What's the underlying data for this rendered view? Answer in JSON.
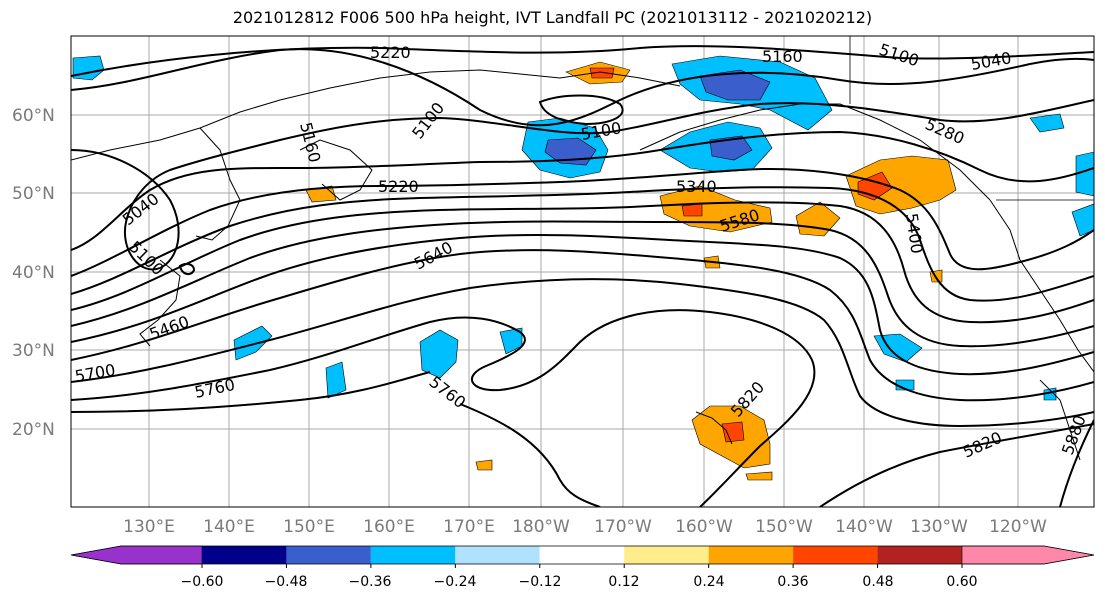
{
  "title": "2021012812 F006 500 hPa height, IVT Landfall PC (2021013112 - 2021020212)",
  "lat_labels": [
    "60°N",
    "50°N",
    "40°N",
    "30°N",
    "20°N"
  ],
  "lon_labels": [
    "130°E",
    "140°E",
    "150°E",
    "160°E",
    "170°E",
    "180°W",
    "170°W",
    "160°W",
    "150°W",
    "140°W",
    "130°W",
    "120°W"
  ],
  "contour_labels": [
    "5220",
    "5160",
    "5100",
    "5040",
    "5100",
    "5160",
    "5100",
    "5220",
    "5340",
    "5280",
    "5040",
    "5100",
    "5580",
    "5400",
    "5640",
    "5460",
    "5700",
    "5760",
    "5760",
    "5820",
    "5820",
    "5880"
  ],
  "colorbar": {
    "ticks": [
      "−0.60",
      "−0.48",
      "−0.36",
      "−0.24",
      "−0.12",
      "0.12",
      "0.24",
      "0.36",
      "0.48",
      "0.60"
    ],
    "colors": [
      "#9932cc",
      "#00008b",
      "#3a5fcd",
      "#00bfff",
      "#b0e2ff",
      "#ffffff",
      "#ffec8b",
      "#ffa500",
      "#ff4500",
      "#b22222",
      "#ff88aa"
    ]
  }
}
